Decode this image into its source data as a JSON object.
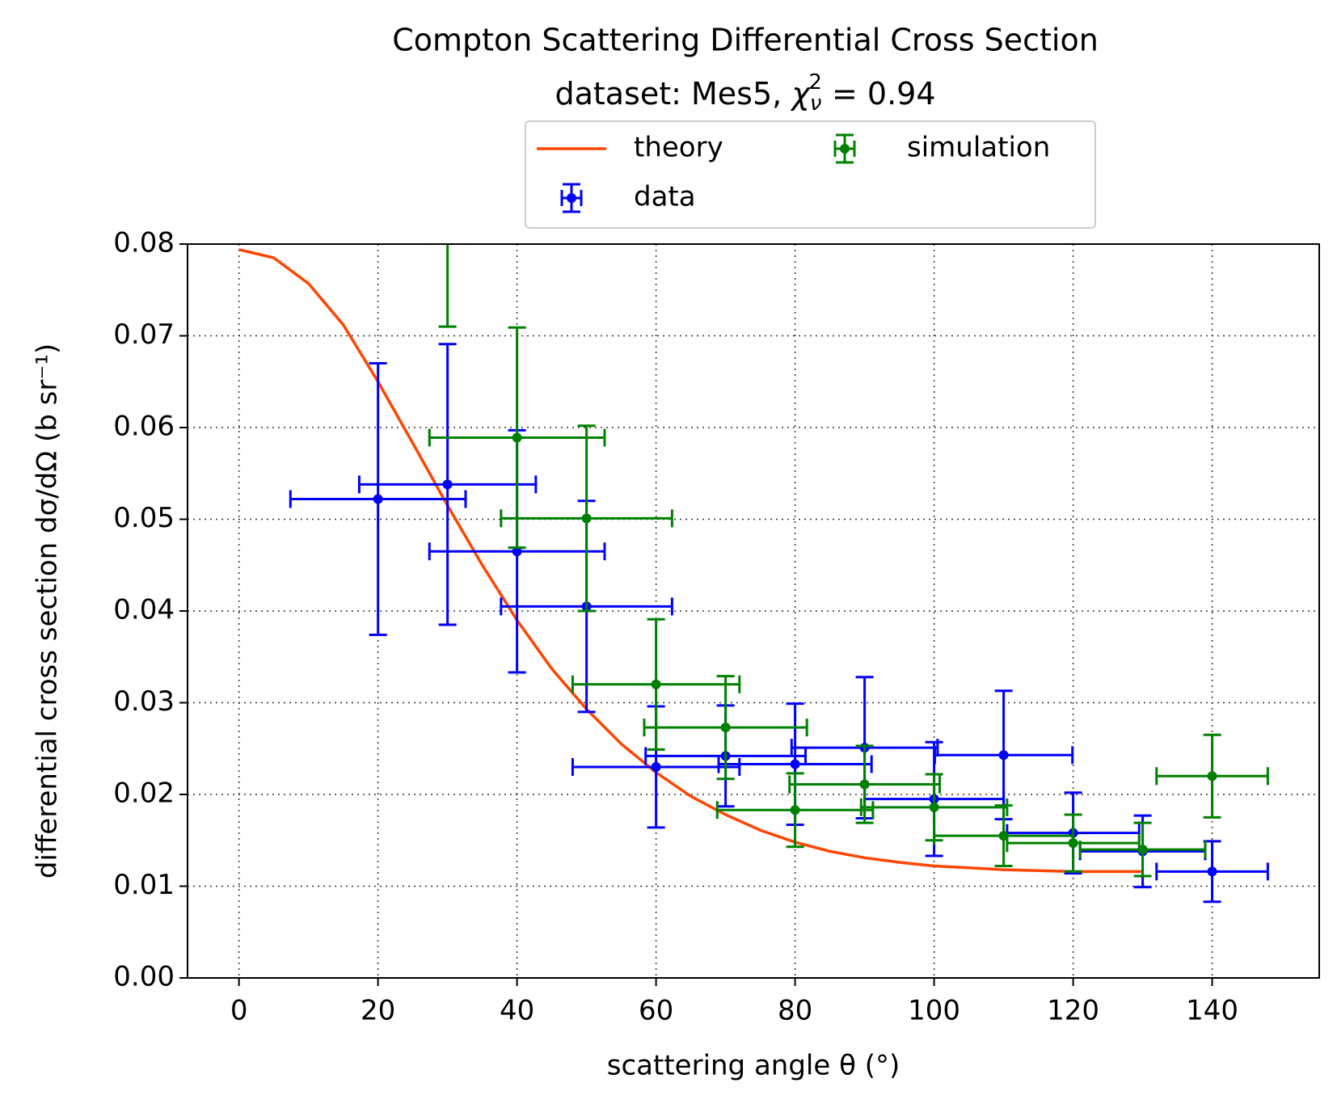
{
  "chart_data": {
    "type": "errorbar",
    "title": "Compton Scattering Differential Cross Section",
    "subtitle": [
      "dataset: Mes5, ",
      "χ",
      "ν",
      "2",
      " =  0.94"
    ],
    "xlabel": "scattering angle θ (°)",
    "ylabel": "differential cross section dσ/dΩ (b sr⁻¹)",
    "xlim": [
      -7.4,
      155.4
    ],
    "ylim": [
      0,
      0.08
    ],
    "xticks": [
      0,
      20,
      40,
      60,
      80,
      100,
      120,
      140
    ],
    "yticks": [
      {
        "value": 0,
        "label": "0.00"
      },
      {
        "value": 0.01,
        "label": "0.01"
      },
      {
        "value": 0.02,
        "label": "0.02"
      },
      {
        "value": 0.03,
        "label": "0.03"
      },
      {
        "value": 0.04,
        "label": "0.04"
      },
      {
        "value": 0.05,
        "label": "0.05"
      },
      {
        "value": 0.06,
        "label": "0.06"
      },
      {
        "value": 0.07,
        "label": "0.07"
      },
      {
        "value": 0.08,
        "label": "0.08"
      }
    ],
    "grid": true,
    "legend": "upper center outside",
    "series": [
      {
        "name": "theory",
        "type": "line",
        "color": "#ff4500",
        "x": [
          0,
          5,
          10,
          15,
          20,
          25,
          30,
          35,
          40,
          45,
          50,
          55,
          60,
          65,
          70,
          75,
          80,
          85,
          90,
          95,
          100,
          105,
          110,
          115,
          120,
          125,
          130
        ],
        "values": [
          0.0794,
          0.0785,
          0.0757,
          0.0712,
          0.065,
          0.0583,
          0.0515,
          0.045,
          0.039,
          0.0337,
          0.0293,
          0.0255,
          0.0224,
          0.0198,
          0.0178,
          0.0161,
          0.0148,
          0.0138,
          0.0131,
          0.0126,
          0.0122,
          0.012,
          0.0118,
          0.0117,
          0.0116,
          0.0116,
          0.0116
        ]
      },
      {
        "name": "data",
        "type": "errorbar",
        "color": "#0000ff",
        "x": [
          20,
          30,
          40,
          50,
          60,
          70,
          80,
          90,
          100,
          110,
          120,
          130,
          140
        ],
        "values": [
          0.0522,
          0.0538,
          0.0465,
          0.0405,
          0.023,
          0.0242,
          0.0233,
          0.0251,
          0.0195,
          0.0243,
          0.0158,
          0.0138,
          0.0116
        ],
        "xerr": [
          12.6,
          12.7,
          12.6,
          12.3,
          12,
          11.5,
          11,
          10.5,
          10,
          9.9,
          9.5,
          9,
          8
        ],
        "yerr": [
          0.0148,
          0.0153,
          0.0132,
          0.0115,
          0.0066,
          0.0055,
          0.0066,
          0.0077,
          0.0062,
          0.007,
          0.0044,
          0.0039,
          0.0033
        ]
      },
      {
        "name": "simulation",
        "type": "errorbar",
        "color": "#008000",
        "x": [
          30,
          40,
          50,
          60,
          70,
          80,
          90,
          100,
          110,
          120,
          130,
          140
        ],
        "values": [
          0.085,
          0.0589,
          0.0501,
          0.032,
          0.0273,
          0.0183,
          0.0211,
          0.0186,
          0.0155,
          0.0147,
          0.014,
          0.022
        ],
        "xerr": [
          12.7,
          12.6,
          12.3,
          12,
          11.7,
          11.2,
          10.8,
          10.5,
          10,
          9.5,
          9,
          8
        ],
        "yerr": [
          0.014,
          0.012,
          0.0101,
          0.0071,
          0.0056,
          0.004,
          0.0042,
          0.0036,
          0.0033,
          0.0031,
          0.0029,
          0.0045
        ]
      }
    ]
  }
}
